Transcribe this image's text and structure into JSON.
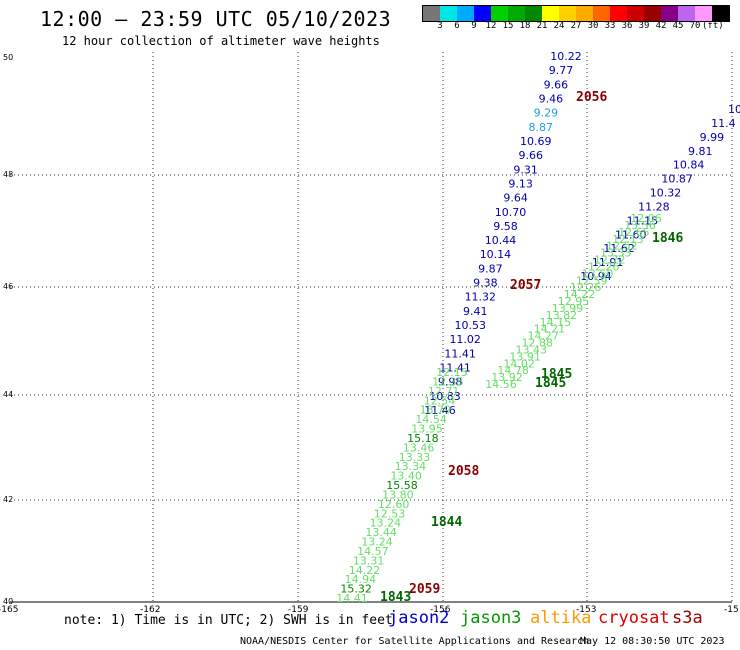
{
  "title": "12:00 – 23:59 UTC 05/10/2023",
  "subtitle": "12 hour collection of altimeter wave heights",
  "colorbar": {
    "colors": [
      "#777777",
      "#00e5e5",
      "#00aaff",
      "#0000ff",
      "#00d000",
      "#00aa00",
      "#008800",
      "#ffff00",
      "#ffd000",
      "#ffaa00",
      "#ff6600",
      "#ff0000",
      "#cc0000",
      "#990000",
      "#880088",
      "#bb66ee",
      "#ff99ff",
      "#000000"
    ],
    "ticks": [
      "3",
      "6",
      "9",
      "12",
      "15",
      "18",
      "21",
      "24",
      "27",
      "30",
      "33",
      "36",
      "39",
      "42",
      "45",
      "70",
      "(ft)"
    ]
  },
  "axes": {
    "x_ticks": [
      "-165",
      "-162",
      "-159",
      "-156",
      "-153",
      "-15"
    ],
    "y_ticks": [
      "50",
      "48",
      "46",
      "44",
      "42",
      "40"
    ]
  },
  "tracks": {
    "jason2_west": [
      "10.22",
      "9.77",
      "9.66",
      "9.46",
      "9.29",
      "8.87",
      "10.69",
      "9.66",
      "9.31",
      "9.13",
      "9.64",
      "10.70",
      "9.58",
      "10.44",
      "10.14",
      "9.87",
      "9.38",
      "11.32",
      "9.41",
      "10.53",
      "11.02",
      "11.41",
      "11.41",
      "9.98",
      "10.83",
      "11.46"
    ],
    "jason2_east": [
      "10",
      "11.4",
      "9.99",
      "9.81",
      "10.84",
      "10.87",
      "10.32",
      "11.28",
      "11.15",
      "11.60",
      "11.62",
      "11.91",
      "10.94"
    ],
    "jason3_east": [
      "12.06",
      "13.56",
      "12.65",
      "12.13",
      "12.52",
      "13.33",
      "12.72",
      "12.26",
      "13.50",
      "12.59",
      "12.26",
      "14.22",
      "12.95",
      "13.99",
      "13.82",
      "14.15",
      "14.21",
      "14.27",
      "12.88",
      "13.43",
      "13.91",
      "14.02",
      "14.78",
      "13.92",
      "14.56"
    ],
    "jason3_west": [
      "12.15",
      "12.35",
      "12.71",
      "12.54",
      "13.79",
      "14.54",
      "13.95",
      "15.18",
      "13.46",
      "13.33",
      "13.34",
      "13.40",
      "15.58",
      "13.80",
      "12.60",
      "12.53",
      "13.24",
      "13.44",
      "13.24",
      "14.57",
      "13.31",
      "14.22",
      "14.94",
      "15.32",
      "14.41"
    ]
  },
  "time_labels": [
    {
      "text": "2056",
      "color": "#880000"
    },
    {
      "text": "2057",
      "color": "#880000"
    },
    {
      "text": "1845",
      "color": "#006600"
    },
    {
      "text": "1845",
      "color": "#006600"
    },
    {
      "text": "2058",
      "color": "#880000"
    },
    {
      "text": "1844",
      "color": "#006600"
    },
    {
      "text": "1846",
      "color": "#006600"
    },
    {
      "text": "2059",
      "color": "#880000"
    },
    {
      "text": "1843",
      "color": "#006600"
    }
  ],
  "note": "note: 1) Time is in UTC; 2) SWH is in feet",
  "legend": [
    {
      "text": "jason2",
      "color": "#0000cc"
    },
    {
      "text": "jason3",
      "color": "#009900"
    },
    {
      "text": "altika",
      "color": "#ff9900"
    },
    {
      "text": "cryosat",
      "color": "#dd0000"
    },
    {
      "text": "s3a",
      "color": "#990000"
    }
  ],
  "credit": "NOAA/NESDIS Center for Satellite Applications and Research",
  "timestamp": "May 12 08:30:50 UTC 2023"
}
